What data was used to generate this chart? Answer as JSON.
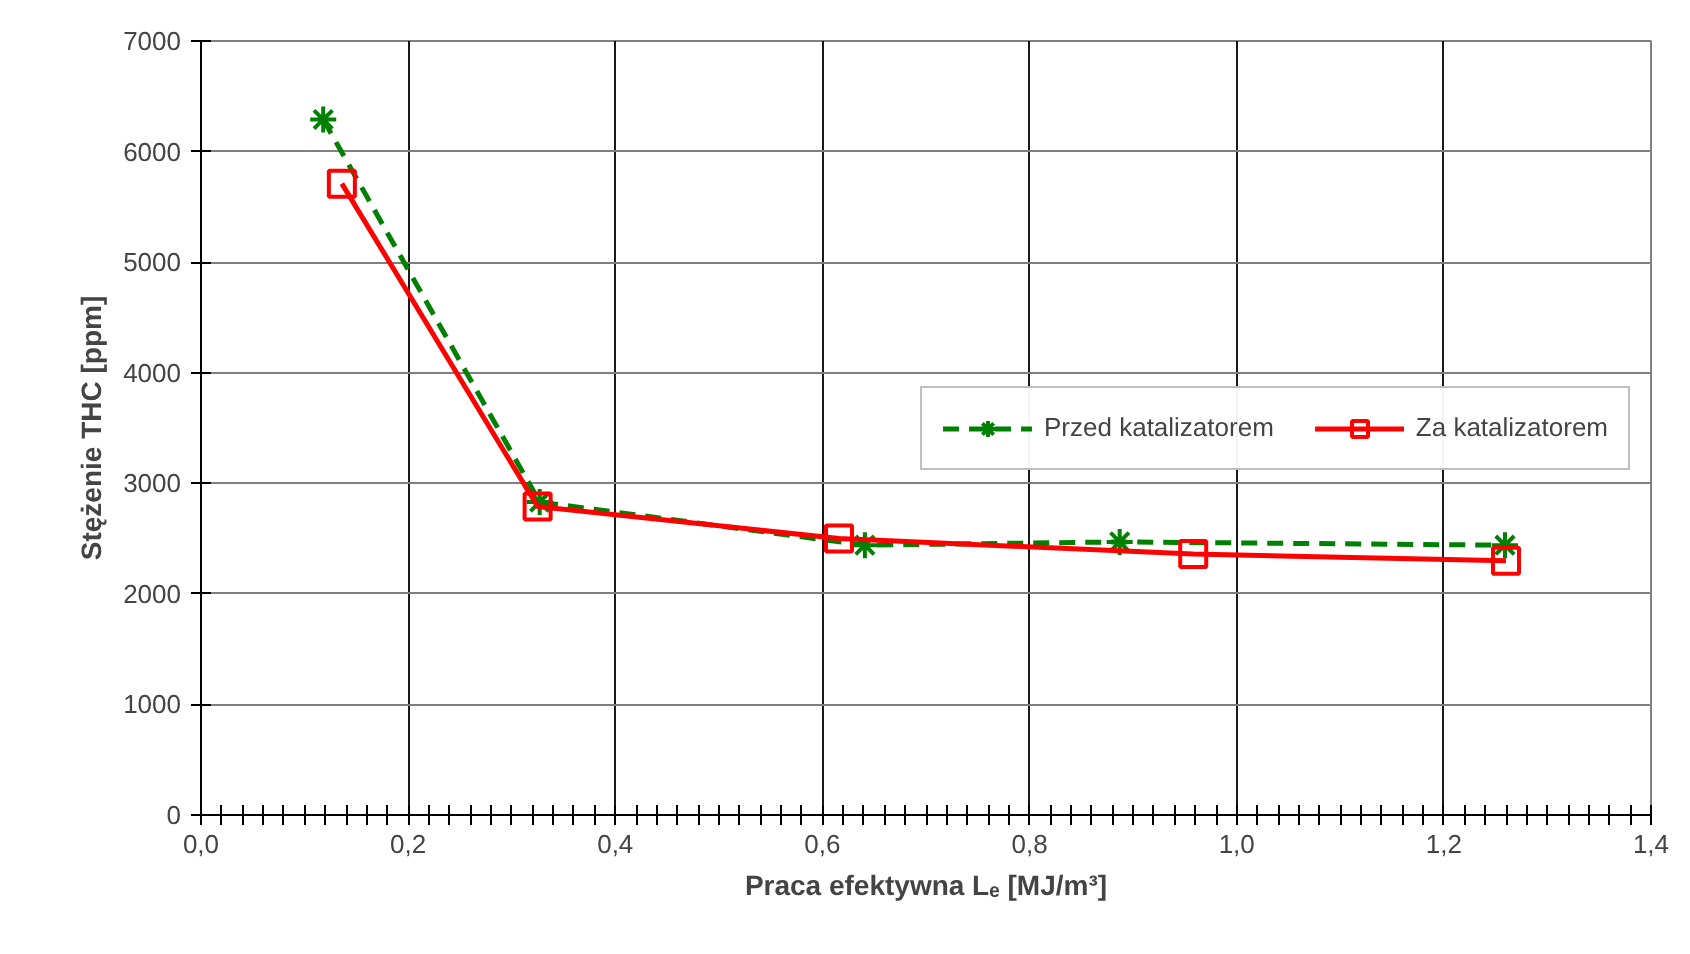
{
  "chart_data": {
    "type": "line",
    "xlabel": "Praca efektywna Lₑ [MJ/m³]",
    "ylabel": "Stężenie THC [ppm]",
    "xlim": [
      0,
      1.4
    ],
    "ylim": [
      0,
      7000
    ],
    "xticks": [
      {
        "value": 0,
        "label": "0,0"
      },
      {
        "value": 0.02,
        "label": null
      },
      {
        "value": 0.04,
        "label": null
      },
      {
        "value": 0.06,
        "label": null
      },
      {
        "value": 0.08,
        "label": null
      },
      {
        "value": 0.1,
        "label": null
      },
      {
        "value": 0.12,
        "label": null
      },
      {
        "value": 0.14,
        "label": null
      },
      {
        "value": 0.16,
        "label": null
      },
      {
        "value": 0.18,
        "label": null
      },
      {
        "value": 0.2,
        "label": "0,2"
      },
      {
        "value": 0.22,
        "label": null
      },
      {
        "value": 0.24,
        "label": null
      },
      {
        "value": 0.26,
        "label": null
      },
      {
        "value": 0.28,
        "label": null
      },
      {
        "value": 0.3,
        "label": null
      },
      {
        "value": 0.32,
        "label": null
      },
      {
        "value": 0.34,
        "label": null
      },
      {
        "value": 0.36,
        "label": null
      },
      {
        "value": 0.38,
        "label": null
      },
      {
        "value": 0.4,
        "label": "0,4"
      },
      {
        "value": 0.42,
        "label": null
      },
      {
        "value": 0.44,
        "label": null
      },
      {
        "value": 0.46,
        "label": null
      },
      {
        "value": 0.48,
        "label": null
      },
      {
        "value": 0.5,
        "label": null
      },
      {
        "value": 0.52,
        "label": null
      },
      {
        "value": 0.54,
        "label": null
      },
      {
        "value": 0.56,
        "label": null
      },
      {
        "value": 0.58,
        "label": null
      },
      {
        "value": 0.6,
        "label": "0,6"
      },
      {
        "value": 0.62,
        "label": null
      },
      {
        "value": 0.64,
        "label": null
      },
      {
        "value": 0.66,
        "label": null
      },
      {
        "value": 0.68,
        "label": null
      },
      {
        "value": 0.7,
        "label": null
      },
      {
        "value": 0.72,
        "label": null
      },
      {
        "value": 0.74,
        "label": null
      },
      {
        "value": 0.76,
        "label": null
      },
      {
        "value": 0.78,
        "label": null
      },
      {
        "value": 0.8,
        "label": "0,8"
      },
      {
        "value": 0.82,
        "label": null
      },
      {
        "value": 0.84,
        "label": null
      },
      {
        "value": 0.86,
        "label": null
      },
      {
        "value": 0.88,
        "label": null
      },
      {
        "value": 0.9,
        "label": null
      },
      {
        "value": 0.92,
        "label": null
      },
      {
        "value": 0.94,
        "label": null
      },
      {
        "value": 0.96,
        "label": null
      },
      {
        "value": 0.98,
        "label": null
      },
      {
        "value": 1.0,
        "label": "1,0"
      },
      {
        "value": 1.02,
        "label": null
      },
      {
        "value": 1.04,
        "label": null
      },
      {
        "value": 1.06,
        "label": null
      },
      {
        "value": 1.08,
        "label": null
      },
      {
        "value": 1.1,
        "label": null
      },
      {
        "value": 1.12,
        "label": null
      },
      {
        "value": 1.14,
        "label": null
      },
      {
        "value": 1.16,
        "label": null
      },
      {
        "value": 1.18,
        "label": null
      },
      {
        "value": 1.2,
        "label": "1,2"
      },
      {
        "value": 1.22,
        "label": null
      },
      {
        "value": 1.24,
        "label": null
      },
      {
        "value": 1.26,
        "label": null
      },
      {
        "value": 1.28,
        "label": null
      },
      {
        "value": 1.3,
        "label": null
      },
      {
        "value": 1.32,
        "label": null
      },
      {
        "value": 1.34,
        "label": null
      },
      {
        "value": 1.36,
        "label": null
      },
      {
        "value": 1.38,
        "label": null
      },
      {
        "value": 1.4,
        "label": "1,4"
      }
    ],
    "yticks": [
      0,
      1000,
      2000,
      3000,
      4000,
      5000,
      6000,
      7000
    ],
    "grid": true,
    "legend": "right",
    "series": [
      {
        "name": "Przed katalizatorem",
        "color": "#008000",
        "marker": "cross",
        "line_style": "dashed",
        "x": [
          0.118,
          0.327,
          0.641,
          0.887,
          1.259
        ],
        "values": [
          6290,
          2830,
          2440,
          2470,
          2440
        ]
      },
      {
        "name": "Za katalizatorem",
        "color": "#ff0000",
        "marker": "square",
        "line_style": "solid",
        "x": [
          0.136,
          0.325,
          0.616,
          0.958,
          1.26
        ],
        "values": [
          5710,
          2790,
          2500,
          2360,
          2300
        ]
      }
    ]
  }
}
